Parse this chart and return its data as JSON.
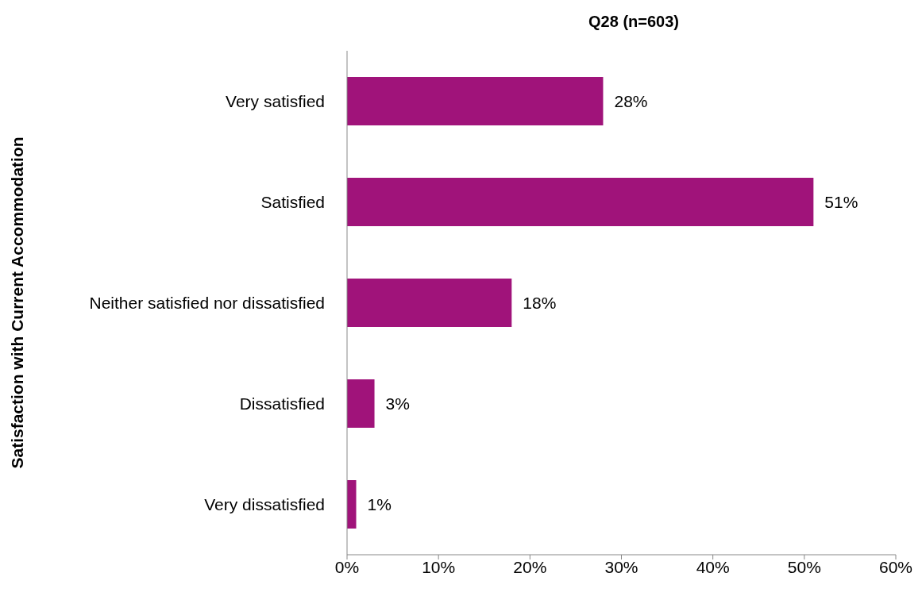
{
  "chart_data": {
    "type": "bar",
    "orientation": "horizontal",
    "title": "Q28 (n=603)",
    "ylabel": "Satisfaction with Current Accommodation",
    "categories": [
      "Very satisfied",
      "Satisfied",
      "Neither satisfied nor dissatisfied",
      "Dissatisfied",
      "Very dissatisfied"
    ],
    "values": [
      28,
      51,
      18,
      3,
      1
    ],
    "value_labels": [
      "28%",
      "51%",
      "18%",
      "3%",
      "1%"
    ],
    "color": "#a0137a",
    "xlim": [
      0,
      60
    ],
    "xticks": [
      {
        "value": 0,
        "label": "0%"
      },
      {
        "value": 10,
        "label": "10%"
      },
      {
        "value": 20,
        "label": "20%"
      },
      {
        "value": 30,
        "label": "30%"
      },
      {
        "value": 40,
        "label": "40%"
      },
      {
        "value": 50,
        "label": "50%"
      },
      {
        "value": 60,
        "label": "60%"
      }
    ],
    "grid": false,
    "legend": false
  }
}
